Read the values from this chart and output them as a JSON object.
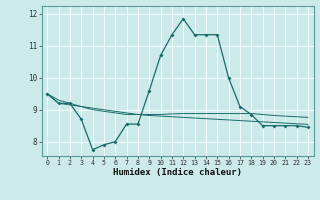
{
  "xlabel": "Humidex (Indice chaleur)",
  "bg_color": "#cceaea",
  "grid_color": "#ffffff",
  "line_color": "#1a6b6b",
  "x_ticks": [
    0,
    1,
    2,
    3,
    4,
    5,
    6,
    7,
    8,
    9,
    10,
    11,
    12,
    13,
    14,
    15,
    16,
    17,
    18,
    19,
    20,
    21,
    22,
    23
  ],
  "y_ticks": [
    8,
    9,
    10,
    11,
    12
  ],
  "xlim": [
    -0.5,
    23.5
  ],
  "ylim": [
    7.55,
    12.25
  ],
  "series1_x": [
    0,
    1,
    2,
    3,
    4,
    5,
    6,
    7,
    8,
    9,
    10,
    11,
    12,
    13,
    14,
    15,
    16,
    17,
    18,
    19,
    20,
    21,
    22,
    23
  ],
  "series1_y": [
    9.5,
    9.2,
    9.2,
    8.7,
    7.75,
    7.9,
    8.0,
    8.55,
    8.55,
    9.6,
    10.7,
    11.35,
    11.85,
    11.35,
    11.35,
    11.35,
    10.0,
    9.1,
    8.85,
    8.5,
    8.5,
    8.5,
    8.5,
    8.45
  ],
  "series2_x": [
    0,
    1,
    2,
    3,
    4,
    5,
    6,
    7,
    8,
    9,
    10,
    11,
    12,
    13,
    14,
    15,
    16,
    17,
    18,
    19,
    20,
    21,
    22,
    23
  ],
  "series2_y": [
    9.5,
    9.2,
    9.15,
    9.1,
    9.05,
    9.0,
    8.95,
    8.9,
    8.85,
    8.82,
    8.8,
    8.78,
    8.76,
    8.74,
    8.72,
    8.7,
    8.68,
    8.66,
    8.64,
    8.62,
    8.6,
    8.58,
    8.56,
    8.54
  ],
  "series3_x": [
    0,
    1,
    2,
    3,
    4,
    5,
    6,
    7,
    8,
    9,
    10,
    11,
    12,
    13,
    14,
    15,
    16,
    17,
    18,
    19,
    20,
    21,
    22,
    23
  ],
  "series3_y": [
    9.5,
    9.3,
    9.2,
    9.1,
    9.0,
    8.95,
    8.9,
    8.85,
    8.85,
    8.85,
    8.85,
    8.87,
    8.88,
    8.88,
    8.88,
    8.88,
    8.88,
    8.88,
    8.88,
    8.85,
    8.82,
    8.8,
    8.78,
    8.76
  ]
}
